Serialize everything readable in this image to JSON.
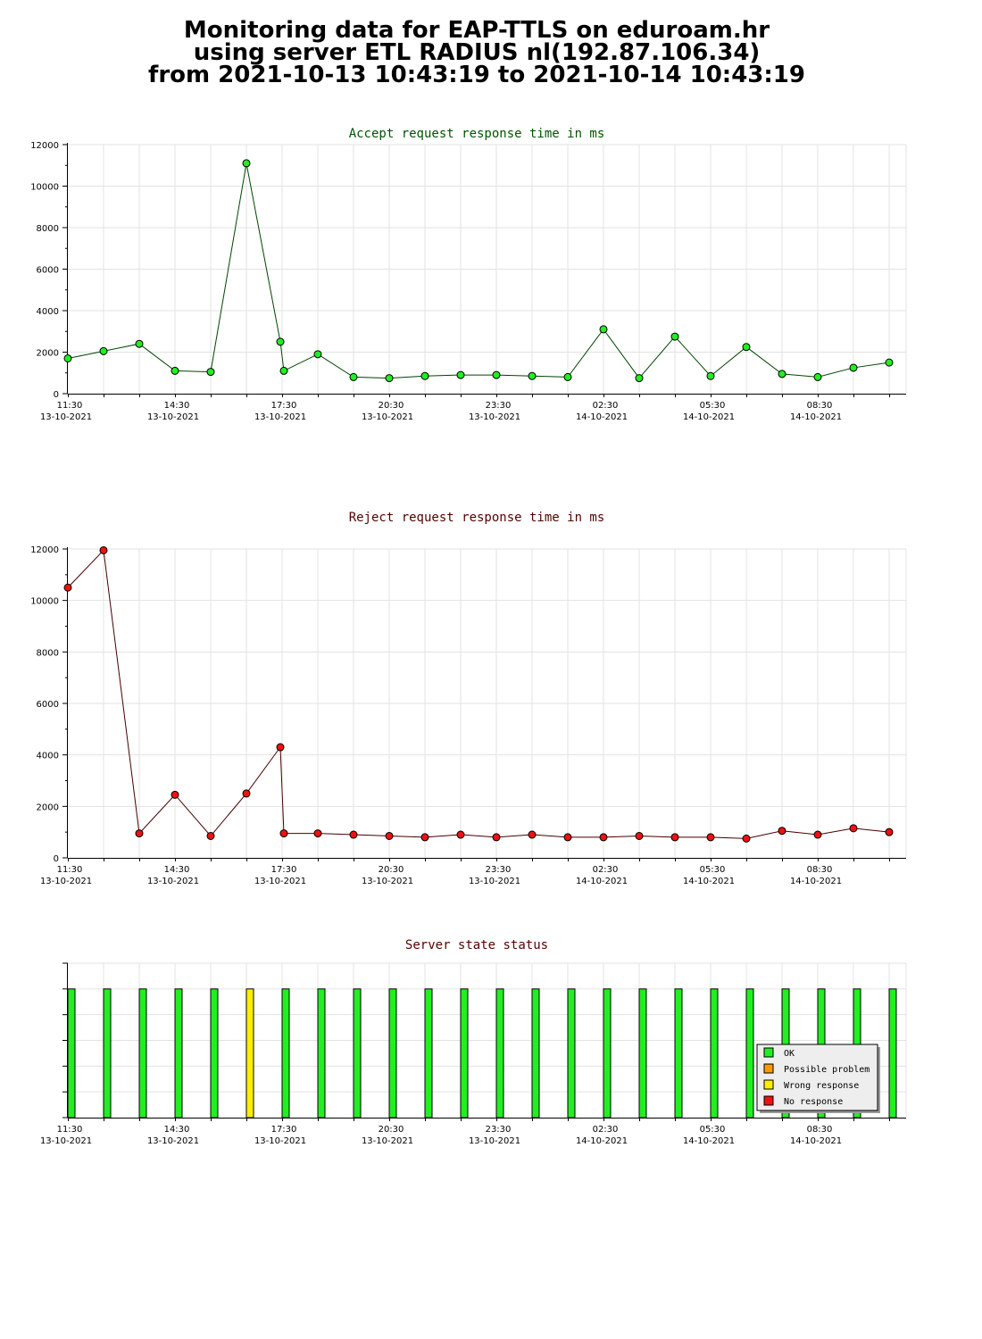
{
  "title": {
    "line1": "Monitoring data for EAP-TTLS on eduroam.hr",
    "line2": "using server ETL RADIUS nl(192.87.106.34)",
    "line3": "from 2021-10-13 10:43:19 to 2021-10-14 10:43:19"
  },
  "chart_data": [
    {
      "type": "line",
      "title": "Accept request response time in ms",
      "title_color": "#005500",
      "line_color": "#004400",
      "marker_color": "#22ee22",
      "ylim": [
        0,
        12000
      ],
      "yticks": [
        0,
        2000,
        4000,
        6000,
        8000,
        10000,
        12000
      ],
      "xticks": [
        {
          "time": "11:30",
          "date": "13-10-2021"
        },
        {
          "time": "14:30",
          "date": "13-10-2021"
        },
        {
          "time": "17:30",
          "date": "13-10-2021"
        },
        {
          "time": "20:30",
          "date": "13-10-2021"
        },
        {
          "time": "23:30",
          "date": "13-10-2021"
        },
        {
          "time": "02:30",
          "date": "14-10-2021"
        },
        {
          "time": "05:30",
          "date": "14-10-2021"
        },
        {
          "time": "08:30",
          "date": "14-10-2021"
        }
      ],
      "x_hours": [
        0,
        1,
        2,
        3,
        4,
        5,
        5.95,
        6.05,
        7,
        8,
        9,
        10,
        11,
        12,
        13,
        14,
        15,
        16,
        17,
        18,
        19,
        20,
        21,
        22,
        23
      ],
      "values": [
        1700,
        2050,
        2400,
        1100,
        1050,
        11100,
        2500,
        1100,
        1900,
        800,
        750,
        850,
        900,
        900,
        850,
        800,
        3100,
        750,
        2750,
        850,
        2250,
        950,
        800,
        1250,
        1500
      ]
    },
    {
      "type": "line",
      "title": "Reject request response time in ms",
      "title_color": "#550000",
      "line_color": "#440000",
      "marker_color": "#ee1111",
      "ylim": [
        0,
        12000
      ],
      "yticks": [
        0,
        2000,
        4000,
        6000,
        8000,
        10000,
        12000
      ],
      "xticks": [
        {
          "time": "11:30",
          "date": "13-10-2021"
        },
        {
          "time": "14:30",
          "date": "13-10-2021"
        },
        {
          "time": "17:30",
          "date": "13-10-2021"
        },
        {
          "time": "20:30",
          "date": "13-10-2021"
        },
        {
          "time": "23:30",
          "date": "13-10-2021"
        },
        {
          "time": "02:30",
          "date": "14-10-2021"
        },
        {
          "time": "05:30",
          "date": "14-10-2021"
        },
        {
          "time": "08:30",
          "date": "14-10-2021"
        }
      ],
      "x_hours": [
        0,
        1,
        2,
        3,
        4,
        5,
        5.95,
        6.05,
        7,
        8,
        9,
        10,
        11,
        12,
        13,
        14,
        15,
        16,
        17,
        18,
        19,
        20,
        21,
        22,
        23
      ],
      "values": [
        10500,
        11950,
        950,
        2450,
        850,
        2500,
        4300,
        950,
        950,
        900,
        850,
        800,
        900,
        800,
        900,
        800,
        800,
        850,
        800,
        800,
        750,
        1050,
        900,
        1150,
        1000
      ]
    },
    {
      "type": "bar",
      "title": "Server state status",
      "title_color": "#550000",
      "xticks": [
        {
          "time": "11:30",
          "date": "13-10-2021"
        },
        {
          "time": "14:30",
          "date": "13-10-2021"
        },
        {
          "time": "17:30",
          "date": "13-10-2021"
        },
        {
          "time": "20:30",
          "date": "13-10-2021"
        },
        {
          "time": "23:30",
          "date": "13-10-2021"
        },
        {
          "time": "02:30",
          "date": "14-10-2021"
        },
        {
          "time": "05:30",
          "date": "14-10-2021"
        },
        {
          "time": "08:30",
          "date": "14-10-2021"
        }
      ],
      "x_hours": [
        0,
        1,
        2,
        3,
        4,
        5,
        6,
        7,
        8,
        9,
        10,
        11,
        12,
        13,
        14,
        15,
        16,
        17,
        18,
        19,
        20,
        21,
        22,
        23
      ],
      "states": [
        "OK",
        "OK",
        "OK",
        "OK",
        "OK",
        "Wrong response",
        "OK",
        "OK",
        "OK",
        "OK",
        "OK",
        "OK",
        "OK",
        "OK",
        "OK",
        "OK",
        "OK",
        "OK",
        "OK",
        "OK",
        "OK",
        "OK",
        "OK",
        "OK"
      ],
      "legend_position": "bottom-right",
      "legend": [
        {
          "label": "OK",
          "color": "#22ee22"
        },
        {
          "label": "Possible problem",
          "color": "#ff9900"
        },
        {
          "label": "Wrong response",
          "color": "#ffee00"
        },
        {
          "label": "No response",
          "color": "#ee1111"
        }
      ]
    }
  ]
}
